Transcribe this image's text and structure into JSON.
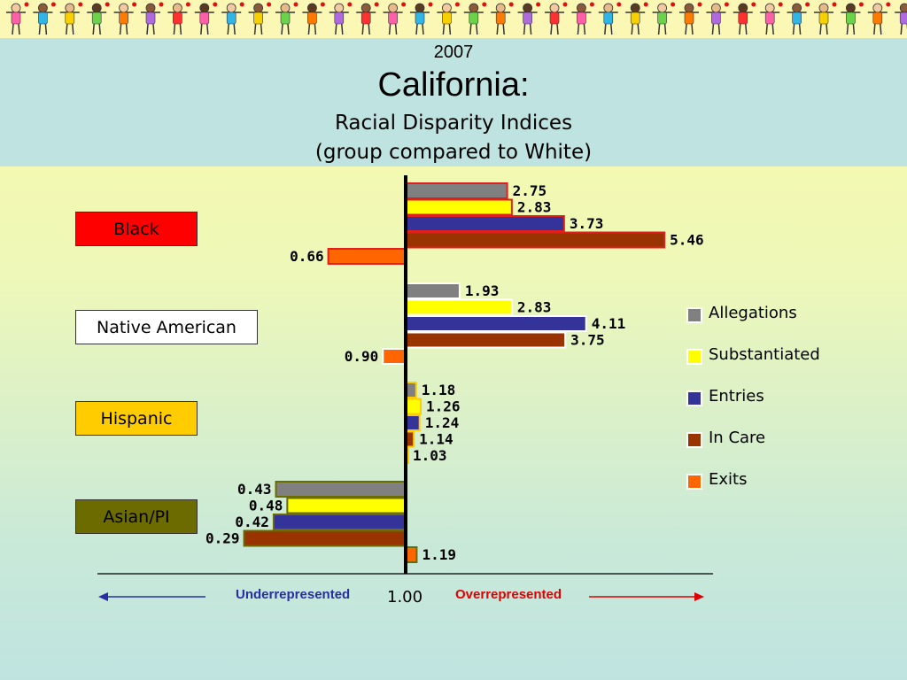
{
  "header": {
    "year": "2007",
    "title": "California:",
    "subtitle_line1": "Racial Disparity Indices",
    "subtitle_line2": "(group compared to White)"
  },
  "footer": {
    "under_label": "Underrepresented",
    "over_label": "Overrepresented",
    "baseline_label": "1.00"
  },
  "chart_data": {
    "type": "bar",
    "orientation": "horizontal",
    "baseline": 1.0,
    "categories": [
      "Black",
      "Native American",
      "Hispanic",
      "Asian/PI"
    ],
    "category_colors": [
      "#ff0000",
      "#ffffff",
      "#ffcc00",
      "#6b6b00"
    ],
    "category_text_colors": [
      "#000000",
      "#000000",
      "#000000",
      "#000000"
    ],
    "series": [
      {
        "name": "Allegations",
        "color": "#808080",
        "values": [
          2.75,
          1.93,
          1.18,
          0.43
        ]
      },
      {
        "name": "Substantiated",
        "color": "#ffff00",
        "values": [
          2.83,
          2.83,
          1.26,
          0.48
        ]
      },
      {
        "name": "Entries",
        "color": "#333399",
        "values": [
          3.73,
          4.11,
          1.24,
          0.42
        ]
      },
      {
        "name": "In Care",
        "color": "#993300",
        "values": [
          5.46,
          3.75,
          1.14,
          0.29
        ]
      },
      {
        "name": "Exits",
        "color": "#ff6600",
        "values": [
          0.66,
          0.9,
          1.03,
          1.19
        ]
      }
    ],
    "value_labels": [
      [
        "2.75",
        "2.83",
        "3.73",
        "5.46",
        "0.66"
      ],
      [
        "1.93",
        "2.83",
        "4.11",
        "3.75",
        "0.90"
      ],
      [
        "1.18",
        "1.26",
        "1.24",
        "1.14",
        "1.03"
      ],
      [
        "0.43",
        "0.48",
        "0.42",
        "0.29",
        "1.19"
      ]
    ],
    "legend_position": "right"
  }
}
